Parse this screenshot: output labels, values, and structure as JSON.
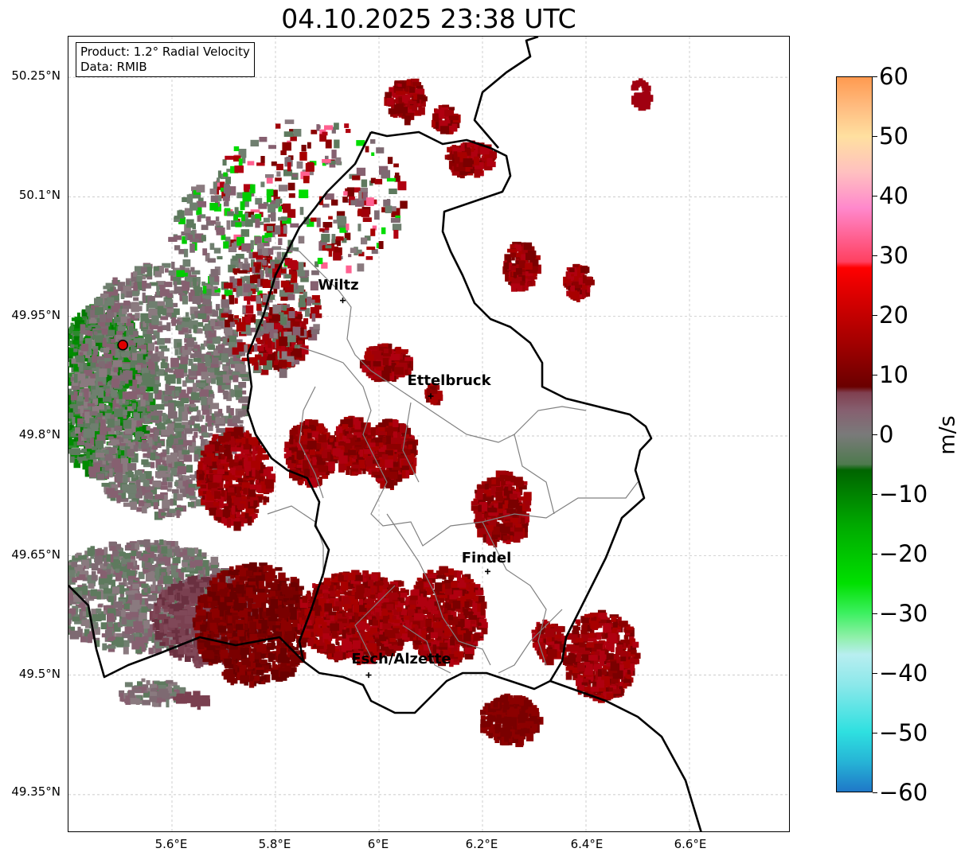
{
  "title": "04.10.2025 23:38 UTC",
  "info": {
    "product": "Product: 1.2° Radial Velocity",
    "data": "Data: RMIB"
  },
  "lat_ticks": [
    "50.25°N",
    "50.1°N",
    "49.95°N",
    "49.8°N",
    "49.65°N",
    "49.5°N",
    "49.35°N"
  ],
  "lon_ticks": [
    "5.6°E",
    "5.8°E",
    "6°E",
    "6.2°E",
    "6.4°E",
    "6.6°E"
  ],
  "cities": [
    {
      "name": "Wiltz",
      "lon": 5.93,
      "lat": 49.97
    },
    {
      "name": "Ettelbruck",
      "lon": 6.1,
      "lat": 49.85
    },
    {
      "name": "Findel",
      "lon": 6.21,
      "lat": 49.63
    },
    {
      "name": "Esch/Alzette",
      "lon": 5.98,
      "lat": 49.5
    }
  ],
  "radar_site": {
    "lon": 5.505,
    "lat": 49.914
  },
  "colorbar": {
    "label": "m/s",
    "ticks": [
      "60",
      "50",
      "40",
      "30",
      "20",
      "10",
      "0",
      "−10",
      "−20",
      "−30",
      "−40",
      "−50",
      "−60"
    ],
    "range": [
      -60,
      60
    ],
    "stops": [
      {
        "v": -60,
        "c": "#1f78c8"
      },
      {
        "v": -55,
        "c": "#26b4d6"
      },
      {
        "v": -50,
        "c": "#2ee0e0"
      },
      {
        "v": -42,
        "c": "#8ce8ea"
      },
      {
        "v": -37,
        "c": "#b8eef0"
      },
      {
        "v": -34,
        "c": "#8ef0a8"
      },
      {
        "v": -30,
        "c": "#3cf060"
      },
      {
        "v": -25,
        "c": "#00e000"
      },
      {
        "v": -15,
        "c": "#00a800"
      },
      {
        "v": -6,
        "c": "#006400"
      },
      {
        "v": -5,
        "c": "#4e7a4e"
      },
      {
        "v": 0,
        "c": "#7a7a7a"
      },
      {
        "v": 4,
        "c": "#866070"
      },
      {
        "v": 7,
        "c": "#804050"
      },
      {
        "v": 8,
        "c": "#6a0000"
      },
      {
        "v": 15,
        "c": "#a00000"
      },
      {
        "v": 24,
        "c": "#e00000"
      },
      {
        "v": 28,
        "c": "#ff0000"
      },
      {
        "v": 29,
        "c": "#ff4060"
      },
      {
        "v": 38,
        "c": "#ff88cc"
      },
      {
        "v": 44,
        "c": "#ffc0c0"
      },
      {
        "v": 50,
        "c": "#ffe0a0"
      },
      {
        "v": 55,
        "c": "#ffbc80"
      },
      {
        "v": 60,
        "c": "#ff9a50"
      }
    ]
  }
}
